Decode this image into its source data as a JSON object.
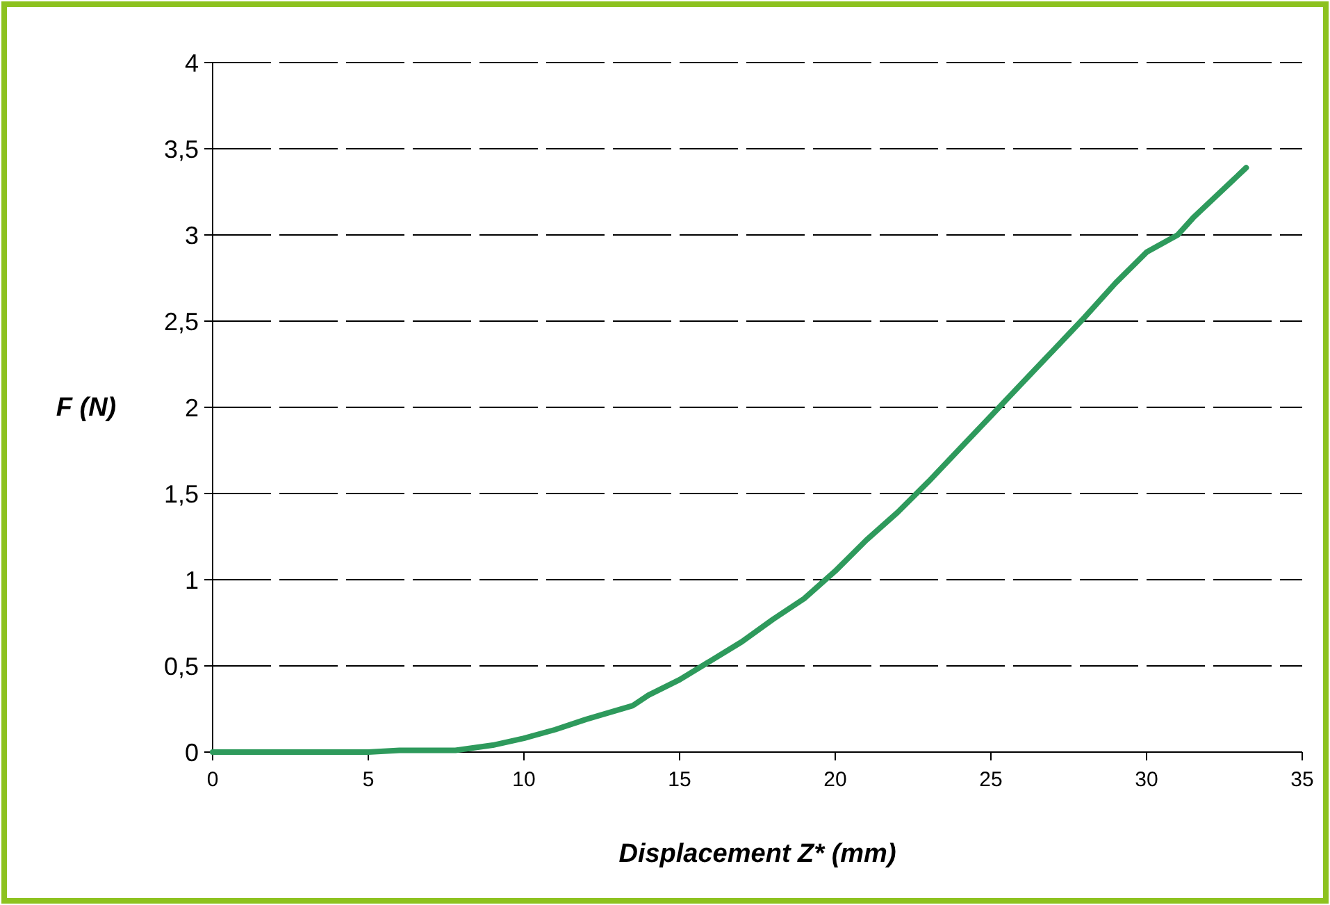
{
  "chart_data": {
    "type": "line",
    "xlabel": "Displacement Z* (mm)",
    "ylabel": "F (N)",
    "x": [
      0,
      5,
      6,
      7.8,
      9,
      10,
      11,
      12,
      13.5,
      14,
      15,
      16,
      17,
      18,
      19,
      20,
      21,
      22,
      23,
      24,
      25,
      26,
      27,
      28,
      29,
      30,
      31,
      31.5,
      33.2
    ],
    "series": [
      {
        "color": "#2e9a5c",
        "values": [
          0,
          0,
          0.01,
          0.01,
          0.04,
          0.08,
          0.13,
          0.19,
          0.27,
          0.33,
          0.42,
          0.53,
          0.64,
          0.77,
          0.89,
          1.05,
          1.23,
          1.39,
          1.57,
          1.76,
          1.95,
          2.14,
          2.33,
          2.52,
          2.72,
          2.9,
          3.0,
          3.1,
          3.39
        ]
      }
    ],
    "xlim": [
      0,
      35
    ],
    "xticks": [
      0,
      5,
      10,
      15,
      20,
      25,
      30,
      35
    ],
    "ylim": [
      0,
      4
    ],
    "yticks": [
      0,
      {
        "value": 0.5,
        "label": "0,5"
      },
      1,
      {
        "value": 1.5,
        "label": "1,5"
      },
      2,
      {
        "value": 2.5,
        "label": "2,5"
      },
      3,
      {
        "value": 3.5,
        "label": "3,5"
      },
      4
    ],
    "grid": "y",
    "marker": "none",
    "line_style": "solid"
  }
}
